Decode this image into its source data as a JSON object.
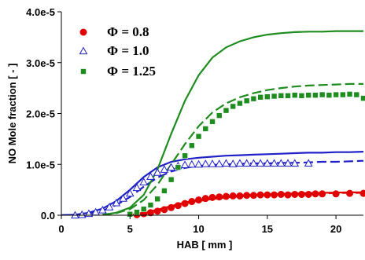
{
  "chart_data": {
    "type": "line",
    "xlabel": "HAB [ mm ]",
    "ylabel": "NO Mole fraction [ - ]",
    "xlim": [
      0,
      22
    ],
    "ylim": [
      0,
      4e-05
    ],
    "x_ticks": [
      0,
      5,
      10,
      15,
      20
    ],
    "x_tick_labels": [
      "0",
      "5",
      "10",
      "15",
      "20"
    ],
    "y_ticks": [
      0,
      1e-05,
      2e-05,
      3e-05,
      4e-05
    ],
    "y_tick_labels": [
      "0.0",
      "1.0e-5",
      "2.0e-5",
      "3.0e-5",
      "4.0e-5"
    ],
    "legend_position": "top-left",
    "grid": false,
    "series": [
      {
        "name": "Φ = 0.8",
        "color": "#e00000",
        "marker": "filled-circle",
        "x": [
          5.5,
          6.0,
          6.5,
          7.0,
          7.5,
          8.0,
          8.5,
          9.0,
          9.5,
          10.0,
          10.5,
          11.0,
          11.5,
          12.0,
          12.5,
          13.0,
          13.5,
          14.0,
          14.5,
          15.0,
          15.5,
          16.0,
          16.5,
          17.0,
          17.5,
          18.0,
          18.5,
          19.0,
          20.0,
          21.0,
          22.0
        ],
        "values": [
          1e-07,
          3e-07,
          5e-07,
          8e-07,
          1.1e-06,
          1.5e-06,
          1.9e-06,
          2.3e-06,
          2.7e-06,
          3e-06,
          3.3e-06,
          3.5e-06,
          3.6e-06,
          3.7e-06,
          3.8e-06,
          3.8e-06,
          3.9e-06,
          3.9e-06,
          4e-06,
          4e-06,
          4e-06,
          4.1e-06,
          4e-06,
          4.1e-06,
          4.1e-06,
          4.1e-06,
          4.2e-06,
          4.2e-06,
          4.2e-06,
          4.3e-06,
          4.3e-06
        ]
      },
      {
        "name": "Φ = 1.0",
        "color": "#2020c8",
        "marker": "open-triangle",
        "x": [
          1.0,
          1.5,
          2.0,
          2.5,
          3.0,
          3.5,
          4.0,
          4.5,
          5.0,
          5.5,
          6.0,
          6.5,
          7.0,
          7.5,
          8.0,
          8.5,
          9.0,
          9.5,
          10.0,
          10.5,
          11.0,
          11.5,
          12.0,
          12.5,
          13.0,
          13.5,
          14.0,
          14.5,
          15.0,
          15.5,
          16.0,
          16.5,
          17.0,
          18.0
        ],
        "values": [
          0,
          1e-07,
          3e-07,
          6e-07,
          1e-06,
          1.6e-06,
          2.4e-06,
          3.3e-06,
          4.3e-06,
          5.4e-06,
          6.5e-06,
          7.6e-06,
          8.4e-06,
          9e-06,
          9.4e-06,
          9.7e-06,
          9.9e-06,
          1e-05,
          1e-05,
          1.01e-05,
          1.01e-05,
          1.01e-05,
          1.02e-05,
          1.01e-05,
          1.02e-05,
          1.02e-05,
          1.02e-05,
          1.02e-05,
          1.02e-05,
          1.02e-05,
          1.02e-05,
          1.02e-05,
          1.02e-05,
          1.02e-05
        ]
      },
      {
        "name": "Φ = 1.25",
        "color": "#1e8c1e",
        "marker": "filled-square",
        "x": [
          5.0,
          5.5,
          6.0,
          6.5,
          7.0,
          7.5,
          8.0,
          8.5,
          9.0,
          9.5,
          10.0,
          10.5,
          11.0,
          11.5,
          12.0,
          12.5,
          13.0,
          13.5,
          14.0,
          14.5,
          15.0,
          15.5,
          16.0,
          16.5,
          17.0,
          17.5,
          18.0,
          18.5,
          19.0,
          19.5,
          20.0,
          20.5,
          21.0,
          21.5,
          22.0
        ],
        "values": [
          2e-07,
          6e-07,
          1.2e-06,
          2e-06,
          3.2e-06,
          4.8e-06,
          7e-06,
          9.4e-06,
          1.17e-05,
          1.37e-05,
          1.55e-05,
          1.7e-05,
          1.84e-05,
          1.96e-05,
          2.06e-05,
          2.14e-05,
          2.2e-05,
          2.25e-05,
          2.29e-05,
          2.32e-05,
          2.33e-05,
          2.34e-05,
          2.35e-05,
          2.35e-05,
          2.36e-05,
          2.35e-05,
          2.36e-05,
          2.36e-05,
          2.37e-05,
          2.36e-05,
          2.37e-05,
          2.37e-05,
          2.38e-05,
          2.37e-05,
          2.3e-05
        ]
      }
    ],
    "model_curves": [
      {
        "color": "#e00000",
        "style": "solid",
        "x": [
          5,
          6,
          7,
          8,
          9,
          10,
          11,
          12,
          13,
          14,
          15,
          16,
          17,
          18,
          19,
          20,
          21,
          22
        ],
        "values": [
          0,
          5e-07,
          1.1e-06,
          1.8e-06,
          2.5e-06,
          3e-06,
          3.4e-06,
          3.7e-06,
          3.9e-06,
          4e-06,
          4.1e-06,
          4.2e-06,
          4.3e-06,
          4.35e-06,
          4.4e-06,
          4.45e-06,
          4.5e-06,
          4.5e-06
        ]
      },
      {
        "color": "#e00000",
        "style": "dashed",
        "x": [
          5,
          6,
          7,
          8,
          9,
          10,
          11,
          12,
          13,
          14,
          15,
          16,
          17,
          18,
          19,
          20,
          21,
          22
        ],
        "values": [
          0,
          4e-07,
          9e-07,
          1.6e-06,
          2.3e-06,
          2.8e-06,
          3.2e-06,
          3.5e-06,
          3.7e-06,
          3.9e-06,
          4e-06,
          4.1e-06,
          4.2e-06,
          4.25e-06,
          4.3e-06,
          4.35e-06,
          4.4e-06,
          4.4e-06
        ]
      },
      {
        "color": "#2020c8",
        "style": "solid",
        "x": [
          0,
          1,
          2,
          3,
          4,
          5,
          6,
          7,
          8,
          9,
          10,
          11,
          12,
          13,
          14,
          15,
          16,
          17,
          18,
          19,
          20,
          21,
          22
        ],
        "values": [
          0,
          1e-07,
          5e-07,
          1.3e-06,
          2.8e-06,
          5e-06,
          7.5e-06,
          9.4e-06,
          1.05e-05,
          1.1e-05,
          1.13e-05,
          1.15e-05,
          1.17e-05,
          1.18e-05,
          1.19e-05,
          1.2e-05,
          1.21e-05,
          1.22e-05,
          1.23e-05,
          1.23e-05,
          1.24e-05,
          1.24e-05,
          1.25e-05
        ]
      },
      {
        "color": "#2020c8",
        "style": "dashed",
        "x": [
          0,
          1,
          2,
          3,
          4,
          5,
          6,
          7,
          8,
          9,
          10,
          11,
          12,
          13,
          14,
          15,
          16,
          17,
          18,
          19,
          20,
          21,
          22
        ],
        "values": [
          0,
          1e-07,
          3e-07,
          9e-07,
          2e-06,
          3.6e-06,
          5.6e-06,
          7.4e-06,
          8.6e-06,
          9.3e-06,
          9.7e-06,
          9.9e-06,
          1e-05,
          1.01e-05,
          1.02e-05,
          1.02e-05,
          1.03e-05,
          1.03e-05,
          1.04e-05,
          1.05e-05,
          1.05e-05,
          1.06e-05,
          1.07e-05
        ]
      },
      {
        "color": "#1e8c1e",
        "style": "solid",
        "x": [
          3,
          4,
          5,
          6,
          7,
          8,
          9,
          10,
          11,
          12,
          13,
          14,
          15,
          16,
          17,
          18,
          19,
          20,
          21,
          22
        ],
        "values": [
          1e-07,
          5e-07,
          1.5e-06,
          4e-06,
          9e-06,
          1.6e-05,
          2.25e-05,
          2.75e-05,
          3.1e-05,
          3.3e-05,
          3.42e-05,
          3.5e-05,
          3.55e-05,
          3.58e-05,
          3.6e-05,
          3.61e-05,
          3.61e-05,
          3.62e-05,
          3.62e-05,
          3.62e-05
        ]
      },
      {
        "color": "#1e8c1e",
        "style": "dashed",
        "x": [
          3,
          4,
          5,
          6,
          7,
          8,
          9,
          10,
          11,
          12,
          13,
          14,
          15,
          16,
          17,
          18,
          19,
          20,
          21,
          22
        ],
        "values": [
          1e-07,
          4e-07,
          1.2e-06,
          3e-06,
          6e-06,
          1e-05,
          1.4e-05,
          1.75e-05,
          2.02e-05,
          2.2e-05,
          2.32e-05,
          2.4e-05,
          2.46e-05,
          2.5e-05,
          2.53e-05,
          2.55e-05,
          2.56e-05,
          2.57e-05,
          2.58e-05,
          2.58e-05
        ]
      }
    ]
  }
}
